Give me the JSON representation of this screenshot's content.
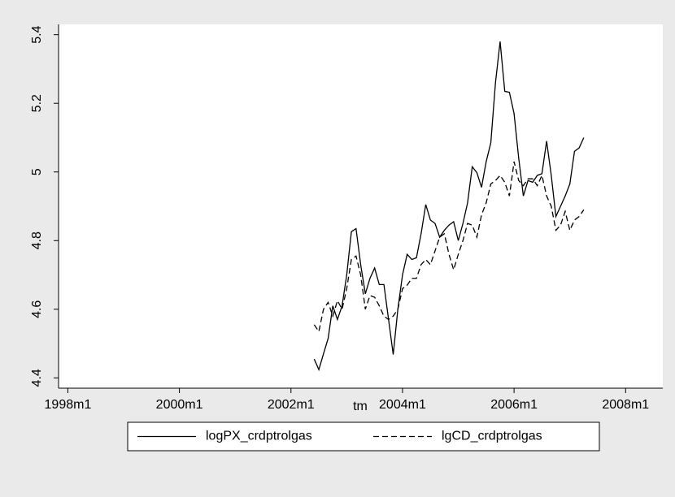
{
  "chart_data": {
    "type": "line",
    "x_label": "tm",
    "x": [
      "2002m6",
      "2002m7",
      "2002m8",
      "2002m9",
      "2002m10",
      "2002m11",
      "2002m12",
      "2003m1",
      "2003m2",
      "2003m3",
      "2003m4",
      "2003m5",
      "2003m6",
      "2003m7",
      "2003m8",
      "2003m9",
      "2003m10",
      "2003m11",
      "2003m12",
      "2004m1",
      "2004m2",
      "2004m3",
      "2004m4",
      "2004m5",
      "2004m6",
      "2004m7",
      "2004m8",
      "2004m9",
      "2004m10",
      "2004m11",
      "2004m12",
      "2005m1",
      "2005m2",
      "2005m3",
      "2005m4",
      "2005m5",
      "2005m6",
      "2005m7",
      "2005m8",
      "2005m9",
      "2005m10",
      "2005m11",
      "2005m12",
      "2006m1",
      "2006m2",
      "2006m3",
      "2006m4",
      "2006m5",
      "2006m6",
      "2006m7",
      "2006m8",
      "2006m9",
      "2006m10",
      "2006m11",
      "2006m12",
      "2007m1",
      "2007m2",
      "2007m3",
      "2007m4"
    ],
    "series": [
      {
        "name": "logPX_crdptrolgas",
        "color": "#000000",
        "dashed": false,
        "values": [
          4.455,
          4.424,
          4.47,
          4.515,
          4.61,
          4.57,
          4.61,
          4.7,
          4.826,
          4.835,
          4.73,
          4.645,
          4.69,
          4.72,
          4.672,
          4.672,
          4.57,
          4.468,
          4.6,
          4.7,
          4.76,
          4.745,
          4.75,
          4.82,
          4.905,
          4.86,
          4.85,
          4.81,
          4.83,
          4.845,
          4.855,
          4.8,
          4.85,
          4.91,
          5.015,
          4.998,
          4.955,
          5.03,
          5.085,
          5.26,
          5.38,
          5.235,
          5.232,
          5.17,
          5.04,
          4.93,
          4.975,
          4.97,
          4.99,
          4.995,
          5.09,
          4.99,
          4.87,
          4.9,
          4.93,
          4.965,
          5.06,
          5.07,
          5.1
        ]
      },
      {
        "name": "lgCD_crdptrolgas",
        "color": "#000000",
        "dashed": true,
        "values": [
          4.555,
          4.535,
          4.6,
          4.62,
          4.58,
          4.625,
          4.6,
          4.66,
          4.745,
          4.755,
          4.7,
          4.6,
          4.64,
          4.635,
          4.61,
          4.58,
          4.57,
          4.58,
          4.6,
          4.66,
          4.67,
          4.69,
          4.69,
          4.73,
          4.745,
          4.73,
          4.77,
          4.81,
          4.82,
          4.76,
          4.715,
          4.76,
          4.8,
          4.85,
          4.845,
          4.81,
          4.875,
          4.91,
          4.965,
          4.975,
          4.99,
          4.97,
          4.93,
          5.03,
          4.975,
          4.96,
          4.98,
          4.98,
          4.96,
          4.99,
          4.93,
          4.9,
          4.83,
          4.845,
          4.885,
          4.83,
          4.86,
          4.87,
          4.89
        ]
      }
    ],
    "xlim": [
      "1997m11",
      "2008m9"
    ],
    "xticks": [
      "1998m1",
      "2000m1",
      "2002m1",
      "2004m1",
      "2006m1",
      "2008m1"
    ],
    "ylim": [
      4.37,
      5.43
    ],
    "yticks": [
      4.4,
      4.6,
      4.8,
      5,
      5.2,
      5.4
    ],
    "grid": false,
    "legend": "bottom"
  }
}
